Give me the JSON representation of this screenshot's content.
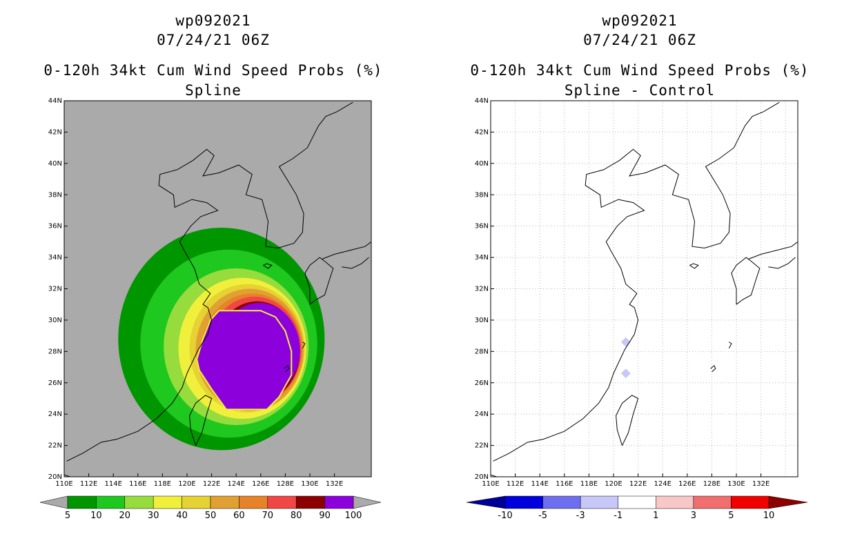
{
  "left_panel": {
    "storm_id": "wp092021",
    "datetime": "07/24/21 06Z",
    "title": "0-120h 34kt Cum Wind Speed Probs (%)",
    "subtitle": "Spline"
  },
  "right_panel": {
    "storm_id": "wp092021",
    "datetime": "07/24/21 06Z",
    "title": "0-120h 34kt Cum Wind Speed Probs (%)",
    "subtitle": "Spline - Control"
  },
  "chart_data": [
    {
      "type": "heatmap",
      "title": "0-120h 34kt Cum Wind Speed Probs (%)",
      "subtitle": "Spline",
      "x_range": [
        110,
        135
      ],
      "y_range": [
        20,
        44
      ],
      "x_tick_labels": [
        "110E",
        "112E",
        "114E",
        "116E",
        "118E",
        "120E",
        "122E",
        "124E",
        "126E",
        "128E",
        "130E",
        "132E"
      ],
      "y_tick_labels": [
        "20N",
        "22N",
        "24N",
        "26N",
        "28N",
        "30N",
        "32N",
        "34N",
        "36N",
        "38N",
        "40N",
        "42N",
        "44N"
      ],
      "grid": false,
      "background_color": "#aaaaaa",
      "colorbar": {
        "levels": [
          "5",
          "10",
          "20",
          "30",
          "40",
          "50",
          "60",
          "70",
          "80",
          "90",
          "100"
        ],
        "colors": [
          "#009600",
          "#1ec81e",
          "#96dc3c",
          "#f0f03c",
          "#e6d232",
          "#e0a032",
          "#e88228",
          "#f04646",
          "#8c0000",
          "#8c00dc"
        ],
        "end_colors": [
          "#aaaaaa",
          "#aaaaaa"
        ]
      },
      "contour_bands": [
        {
          "min_pct": 5,
          "center_lon": 122.8,
          "center_lat": 28.8,
          "rx_deg": 8.4,
          "ry_deg": 7.1
        },
        {
          "min_pct": 10,
          "center_lon": 123.4,
          "center_lat": 28.5,
          "rx_deg": 7.2,
          "ry_deg": 6.0
        },
        {
          "min_pct": 20,
          "center_lon": 124.0,
          "center_lat": 28.3,
          "rx_deg": 5.9,
          "ry_deg": 5.0
        },
        {
          "min_pct": 30,
          "center_lon": 124.5,
          "center_lat": 28.2,
          "rx_deg": 5.2,
          "ry_deg": 4.5
        },
        {
          "min_pct": 40,
          "center_lon": 124.9,
          "center_lat": 28.2,
          "rx_deg": 4.7,
          "ry_deg": 4.1
        },
        {
          "min_pct": 50,
          "center_lon": 125.1,
          "center_lat": 28.1,
          "rx_deg": 4.4,
          "ry_deg": 3.9
        },
        {
          "min_pct": 60,
          "center_lon": 125.3,
          "center_lat": 28.1,
          "rx_deg": 4.1,
          "ry_deg": 3.6
        },
        {
          "min_pct": 70,
          "center_lon": 125.5,
          "center_lat": 28.1,
          "rx_deg": 3.8,
          "ry_deg": 3.4
        },
        {
          "min_pct": 80,
          "center_lon": 125.7,
          "center_lat": 28.0,
          "rx_deg": 3.5,
          "ry_deg": 3.2
        },
        {
          "min_pct": 90,
          "center_lon": 125.9,
          "center_lat": 28.1,
          "rx_deg": 3.3,
          "ry_deg": 3.0
        }
      ],
      "max_region": {
        "min_pct": 100,
        "polygon_lonlat": [
          [
            122.6,
            30.6
          ],
          [
            126.0,
            30.6
          ],
          [
            127.2,
            30.2
          ],
          [
            128.0,
            29.3
          ],
          [
            128.5,
            28.0
          ],
          [
            128.5,
            26.5
          ],
          [
            127.5,
            25.1
          ],
          [
            126.5,
            24.3
          ],
          [
            123.2,
            24.3
          ],
          [
            122.0,
            25.6
          ],
          [
            121.0,
            26.8
          ],
          [
            120.8,
            27.5
          ],
          [
            121.3,
            28.8
          ],
          [
            121.9,
            30.0
          ]
        ]
      }
    },
    {
      "type": "heatmap",
      "title": "0-120h 34kt Cum Wind Speed Probs (%)",
      "subtitle": "Spline - Control",
      "x_range": [
        110,
        135
      ],
      "y_range": [
        20,
        44
      ],
      "x_tick_labels": [
        "110E",
        "112E",
        "114E",
        "116E",
        "118E",
        "120E",
        "122E",
        "124E",
        "126E",
        "128E",
        "130E",
        "132E"
      ],
      "y_tick_labels": [
        "20N",
        "22N",
        "24N",
        "26N",
        "28N",
        "30N",
        "32N",
        "34N",
        "36N",
        "38N",
        "40N",
        "42N",
        "44N"
      ],
      "grid": true,
      "background_color": "#ffffff",
      "colorbar": {
        "levels": [
          "-10",
          "-5",
          "-3",
          "-1",
          "1",
          "3",
          "5",
          "10"
        ],
        "colors": [
          "#0000dc",
          "#6e6ef0",
          "#c8c8f8",
          "#ffffff",
          "#f8c8c8",
          "#f06e6e",
          "#f00000"
        ],
        "end_colors": [
          "#000096",
          "#8c0000"
        ]
      },
      "difference_cells": [
        {
          "lon": 121.0,
          "lat": 28.6,
          "diff_pct": -2
        },
        {
          "lon": 121.0,
          "lat": 26.6,
          "diff_pct": -2
        }
      ]
    }
  ]
}
